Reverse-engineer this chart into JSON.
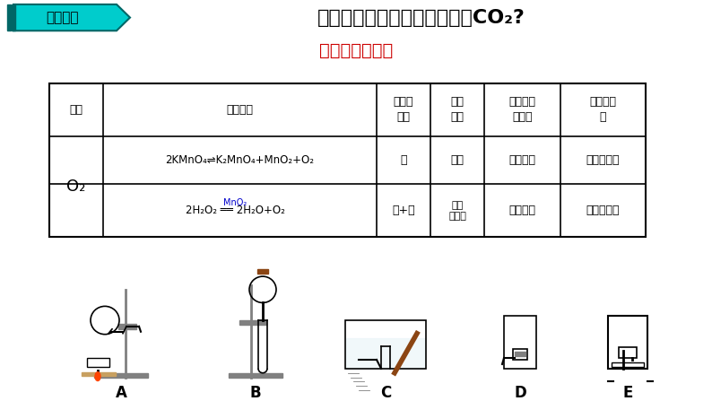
{
  "title_arrow_text": "提出问题",
  "title_main": "如何选择一套合理的装置制取CO₂?",
  "title_sub": "［温故而知新］",
  "title_sub_color": "#cc0000",
  "table_headers": [
    "气体",
    "反应原理",
    "反应物\n状态",
    "反应\n条件",
    "密度与空\n气比较",
    "是否溶于\n水"
  ],
  "table_row1_gas": "O₂",
  "table_row1_eq1": "2KMnO₄⇌K₂MnO4+MnO₂+O₂",
  "table_row1_state1": "固",
  "table_row1_cond1": "加热",
  "table_row1_dens1": "大于空气",
  "table_row1_sol1": "不易溶于水",
  "table_row2_eq2": "2H₂O₂ ══ 2H₂O+O₂",
  "table_row2_catalyst": "MnO₂",
  "table_row2_state2": "固+液",
  "table_row2_cond2": "常温\n催化剂",
  "table_row2_dens2": "大于空气",
  "table_row2_sol2": "不易溶于水",
  "labels": [
    "A",
    "B",
    "C",
    "D",
    "E"
  ],
  "bg_color": "#ffffff",
  "arrow_color": "#00cccc",
  "arrow_border_color": "#005555"
}
